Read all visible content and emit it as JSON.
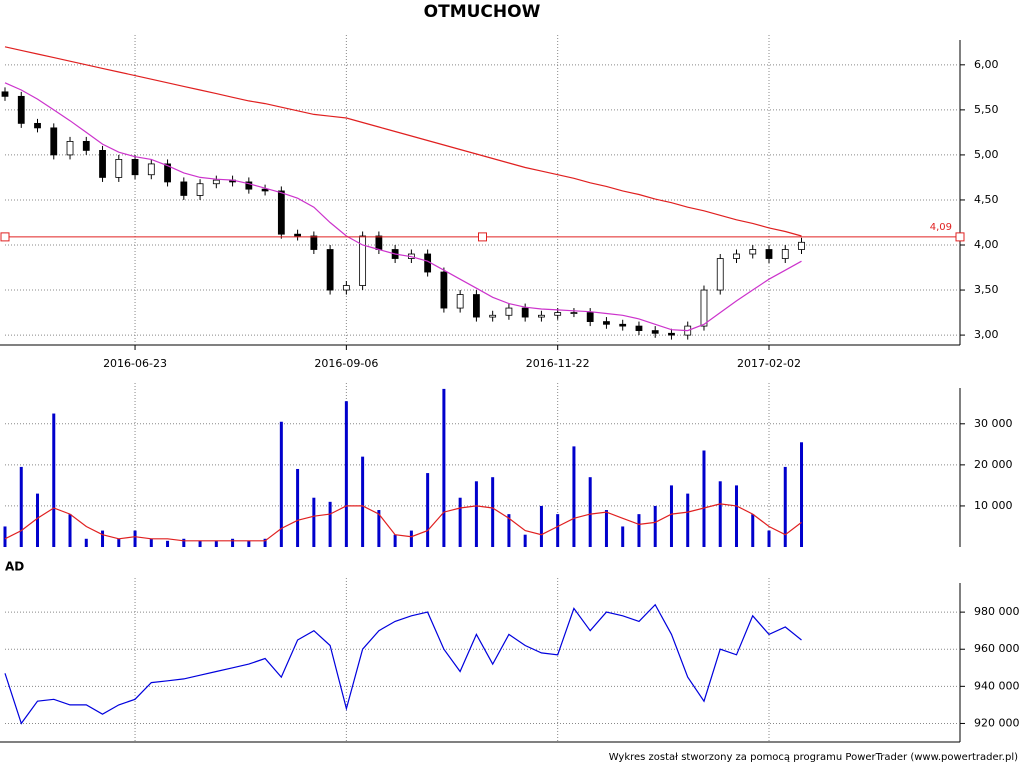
{
  "title": "OTMUCHOW",
  "footer": "Wykres został stworzony za pomocą programu PowerTrader (www.powertrader.pl)",
  "chart_data": [
    {
      "type": "candlestick",
      "x": [
        0,
        4,
        8,
        12,
        16,
        20,
        24,
        28,
        32,
        36,
        40,
        44,
        48,
        52,
        56,
        60,
        64,
        68,
        72,
        76,
        80,
        84,
        88,
        92,
        96,
        100,
        104,
        108,
        112,
        116,
        120,
        124,
        128,
        132,
        136,
        140,
        144,
        148,
        152,
        156,
        160,
        164,
        168,
        172,
        176,
        180,
        184,
        188,
        192,
        196
      ],
      "open": [
        5.7,
        5.65,
        5.35,
        5.3,
        5.0,
        5.15,
        5.05,
        4.75,
        4.95,
        4.78,
        4.9,
        4.7,
        4.55,
        4.68,
        4.72,
        4.7,
        4.62,
        4.6,
        4.12,
        4.1,
        3.95,
        3.5,
        3.55,
        4.1,
        3.95,
        3.85,
        3.9,
        3.7,
        3.3,
        3.45,
        3.2,
        3.22,
        3.3,
        3.2,
        3.22,
        3.25,
        3.25,
        3.15,
        3.12,
        3.1,
        3.05,
        3.02,
        3.0,
        3.1,
        3.5,
        3.85,
        3.9,
        3.95,
        3.85,
        3.95
      ],
      "high": [
        5.75,
        5.7,
        5.4,
        5.35,
        5.2,
        5.2,
        5.1,
        5.0,
        5.0,
        4.95,
        4.95,
        4.75,
        4.73,
        4.77,
        4.77,
        4.75,
        4.67,
        4.65,
        4.17,
        4.15,
        4.0,
        3.6,
        4.15,
        4.15,
        4.0,
        3.95,
        3.95,
        3.75,
        3.5,
        3.5,
        3.27,
        3.35,
        3.35,
        3.27,
        3.3,
        3.3,
        3.3,
        3.2,
        3.17,
        3.15,
        3.1,
        3.07,
        3.15,
        3.55,
        3.9,
        3.95,
        4.0,
        4.0,
        4.0,
        4.08
      ],
      "low": [
        5.6,
        5.3,
        5.25,
        4.95,
        4.95,
        5.0,
        4.7,
        4.7,
        4.73,
        4.73,
        4.65,
        4.5,
        4.5,
        4.63,
        4.65,
        4.57,
        4.55,
        4.07,
        4.05,
        3.9,
        3.45,
        3.45,
        3.5,
        3.9,
        3.8,
        3.8,
        3.65,
        3.25,
        3.25,
        3.15,
        3.15,
        3.17,
        3.15,
        3.15,
        3.17,
        3.2,
        3.1,
        3.07,
        3.05,
        3.0,
        2.97,
        2.95,
        2.95,
        3.05,
        3.45,
        3.8,
        3.85,
        3.8,
        3.8,
        3.9
      ],
      "close": [
        5.65,
        5.35,
        5.3,
        5.0,
        5.15,
        5.05,
        4.75,
        4.95,
        4.78,
        4.9,
        4.7,
        4.55,
        4.68,
        4.72,
        4.7,
        4.62,
        4.6,
        4.12,
        4.1,
        3.95,
        3.5,
        3.55,
        4.1,
        3.95,
        3.85,
        3.9,
        3.7,
        3.3,
        3.45,
        3.2,
        3.22,
        3.3,
        3.2,
        3.22,
        3.25,
        3.25,
        3.15,
        3.12,
        3.1,
        3.05,
        3.02,
        3.0,
        3.1,
        3.5,
        3.85,
        3.9,
        3.95,
        3.85,
        3.95,
        4.03
      ],
      "up_color": "#ffffff",
      "down_color": "#000000",
      "lines": [
        {
          "color": "#e02020",
          "values": [
            6.2,
            6.16,
            6.12,
            6.08,
            6.04,
            6.0,
            5.96,
            5.92,
            5.88,
            5.84,
            5.8,
            5.76,
            5.72,
            5.68,
            5.64,
            5.6,
            5.57,
            5.53,
            5.49,
            5.45,
            5.43,
            5.41,
            5.36,
            5.31,
            5.26,
            5.21,
            5.16,
            5.11,
            5.06,
            5.01,
            4.96,
            4.91,
            4.86,
            4.82,
            4.78,
            4.74,
            4.69,
            4.65,
            4.6,
            4.56,
            4.51,
            4.47,
            4.42,
            4.38,
            4.33,
            4.28,
            4.24,
            4.19,
            4.15,
            4.1
          ]
        },
        {
          "color": "#cc33cc",
          "values": [
            5.8,
            5.72,
            5.62,
            5.5,
            5.38,
            5.25,
            5.12,
            5.03,
            4.98,
            4.95,
            4.88,
            4.8,
            4.75,
            4.73,
            4.72,
            4.68,
            4.63,
            4.58,
            4.52,
            4.42,
            4.25,
            4.1,
            4.0,
            3.95,
            3.9,
            3.87,
            3.82,
            3.72,
            3.62,
            3.52,
            3.42,
            3.35,
            3.31,
            3.29,
            3.28,
            3.27,
            3.26,
            3.24,
            3.22,
            3.18,
            3.12,
            3.06,
            3.05,
            3.12,
            3.25,
            3.38,
            3.5,
            3.62,
            3.72,
            3.82
          ]
        }
      ],
      "hline": {
        "value": 4.09,
        "label": "4,09",
        "color": "#e02020"
      },
      "xlim": [
        0,
        235
      ],
      "xticks": [
        {
          "value": 32,
          "label": "2016-06-23"
        },
        {
          "value": 84,
          "label": "2016-09-06"
        },
        {
          "value": 136,
          "label": "2016-11-22"
        },
        {
          "value": 188,
          "label": "2017-02-02"
        }
      ],
      "ylim": [
        2.89,
        6.22
      ],
      "yticks": [
        {
          "value": 3,
          "label": "3,00"
        },
        {
          "value": 3.5,
          "label": "3,50"
        },
        {
          "value": 4,
          "label": "4,00"
        },
        {
          "value": 4.5,
          "label": "4,50"
        },
        {
          "value": 5,
          "label": "5,00"
        },
        {
          "value": 5.5,
          "label": "5,50"
        },
        {
          "value": 6,
          "label": "6,00"
        }
      ],
      "grid": true
    },
    {
      "type": "bar",
      "x": [
        0,
        4,
        8,
        12,
        16,
        20,
        24,
        28,
        32,
        36,
        40,
        44,
        48,
        52,
        56,
        60,
        64,
        68,
        72,
        76,
        80,
        84,
        88,
        92,
        96,
        100,
        104,
        108,
        112,
        116,
        120,
        124,
        128,
        132,
        136,
        140,
        144,
        148,
        152,
        156,
        160,
        164,
        168,
        172,
        176,
        180,
        184,
        188,
        192,
        196
      ],
      "values": [
        5000,
        19500,
        13000,
        32500,
        8000,
        2000,
        4000,
        2000,
        4000,
        2000,
        1500,
        2000,
        1500,
        1500,
        2000,
        1500,
        2000,
        30500,
        19000,
        12000,
        11000,
        35500,
        22000,
        9000,
        3000,
        4000,
        18000,
        38500,
        12000,
        16000,
        17000,
        8000,
        3000,
        10000,
        8000,
        24500,
        17000,
        9000,
        5000,
        8000,
        10000,
        15000,
        13000,
        23500,
        16000,
        15000,
        8000,
        4000,
        19500,
        25500
      ],
      "color": "#0000cc",
      "lines": [
        {
          "color": "#e02020",
          "values": [
            2000,
            4000,
            7000,
            9500,
            8000,
            5000,
            3000,
            2000,
            2500,
            2000,
            2000,
            1500,
            1500,
            1500,
            1500,
            1500,
            1500,
            4500,
            6500,
            7500,
            8000,
            10000,
            10000,
            8000,
            3000,
            2500,
            4000,
            8500,
            9500,
            10000,
            9500,
            7000,
            4000,
            3000,
            5000,
            7000,
            8000,
            8500,
            7000,
            5500,
            6000,
            8000,
            8500,
            9500,
            10500,
            10000,
            8000,
            5000,
            3000,
            6000
          ]
        }
      ],
      "xlim": [
        0,
        235
      ],
      "ylim": [
        0,
        37500
      ],
      "yticks": [
        {
          "value": 10000,
          "label": "10 000"
        },
        {
          "value": 20000,
          "label": "20 000"
        },
        {
          "value": 30000,
          "label": "30 000"
        }
      ],
      "grid": true
    },
    {
      "type": "line",
      "label": "AD",
      "x": [
        0,
        4,
        8,
        12,
        16,
        20,
        24,
        28,
        32,
        36,
        40,
        44,
        48,
        52,
        56,
        60,
        64,
        68,
        72,
        76,
        80,
        84,
        88,
        92,
        96,
        100,
        104,
        108,
        112,
        116,
        120,
        124,
        128,
        132,
        136,
        140,
        144,
        148,
        152,
        156,
        160,
        164,
        168,
        172,
        176,
        180,
        184,
        188,
        192,
        196
      ],
      "values": [
        947000,
        920000,
        932000,
        933000,
        930000,
        930000,
        925000,
        930000,
        933000,
        942000,
        943000,
        944000,
        946000,
        948000,
        950000,
        952000,
        955000,
        945000,
        965000,
        970000,
        962000,
        928000,
        960000,
        970000,
        975000,
        978000,
        980000,
        960000,
        948000,
        968000,
        952000,
        968000,
        962000,
        958000,
        957000,
        982000,
        970000,
        980000,
        978000,
        975000,
        984000,
        968000,
        945000,
        932000,
        960000,
        957000,
        978000,
        968000,
        972000,
        965000
      ],
      "color": "#0000dd",
      "xlim": [
        0,
        235
      ],
      "ylim": [
        910000,
        993000
      ],
      "yticks": [
        {
          "value": 920000,
          "label": "920 000"
        },
        {
          "value": 940000,
          "label": "940 000"
        },
        {
          "value": 960000,
          "label": "960 000"
        },
        {
          "value": 980000,
          "label": "980 000"
        }
      ],
      "grid": true
    }
  ]
}
